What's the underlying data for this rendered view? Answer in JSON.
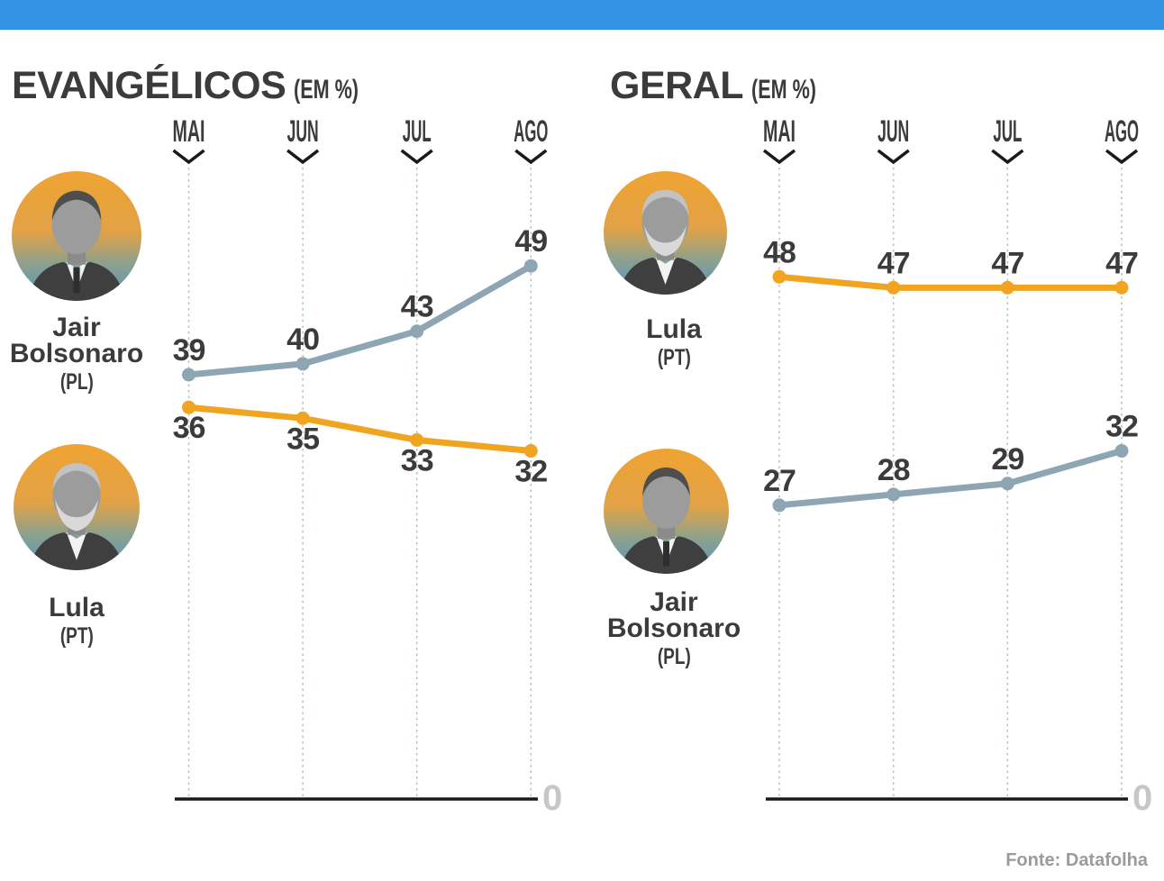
{
  "source_label": "Fonte: Datafolha",
  "colors": {
    "topbar_accent": "#3593E5",
    "bolsonaro_line": "#8EA6B4",
    "lula_line": "#F0A41F",
    "text_dark": "#3B3B3B",
    "zero_label": "#C7C7C7",
    "source_text": "#9B9B9B",
    "gridline": "#ADC2CD"
  },
  "chart_data": [
    {
      "type": "line",
      "title": "EVANGÉLICOS",
      "subtitle": "(EM %)",
      "categories": [
        "MAI",
        "JUN",
        "JUL",
        "AGO"
      ],
      "grid": "vertical-dotted",
      "legend_position": "left",
      "axis": {
        "zero_label": "0",
        "baseline_value": 0
      },
      "ylim": [
        0,
        58
      ],
      "series": [
        {
          "id": "bolsonaro",
          "name_line1": "Jair",
          "name_line2": "Bolsonaro",
          "party": "(PL)",
          "color": "#8EA6B4",
          "values": [
            39,
            40,
            43,
            49
          ],
          "label_position": "above"
        },
        {
          "id": "lula",
          "name_line1": "Lula",
          "name_line2": "",
          "party": "(PT)",
          "color": "#F0A41F",
          "values": [
            36,
            35,
            33,
            32
          ],
          "label_position": "below"
        }
      ]
    },
    {
      "type": "line",
      "title": "GERAL",
      "subtitle": "(EM %)",
      "categories": [
        "MAI",
        "JUN",
        "JUL",
        "AGO"
      ],
      "grid": "vertical-dotted",
      "legend_position": "left",
      "axis": {
        "zero_label": "0",
        "baseline_value": 0
      },
      "ylim": [
        0,
        58
      ],
      "series": [
        {
          "id": "lula",
          "name_line1": "Lula",
          "name_line2": "",
          "party": "(PT)",
          "color": "#F0A41F",
          "values": [
            48,
            47,
            47,
            47
          ],
          "label_position": "above"
        },
        {
          "id": "bolsonaro",
          "name_line1": "Jair",
          "name_line2": "Bolsonaro",
          "party": "(PL)",
          "color": "#8EA6B4",
          "values": [
            27,
            28,
            29,
            32
          ],
          "label_position": "above"
        }
      ]
    }
  ]
}
